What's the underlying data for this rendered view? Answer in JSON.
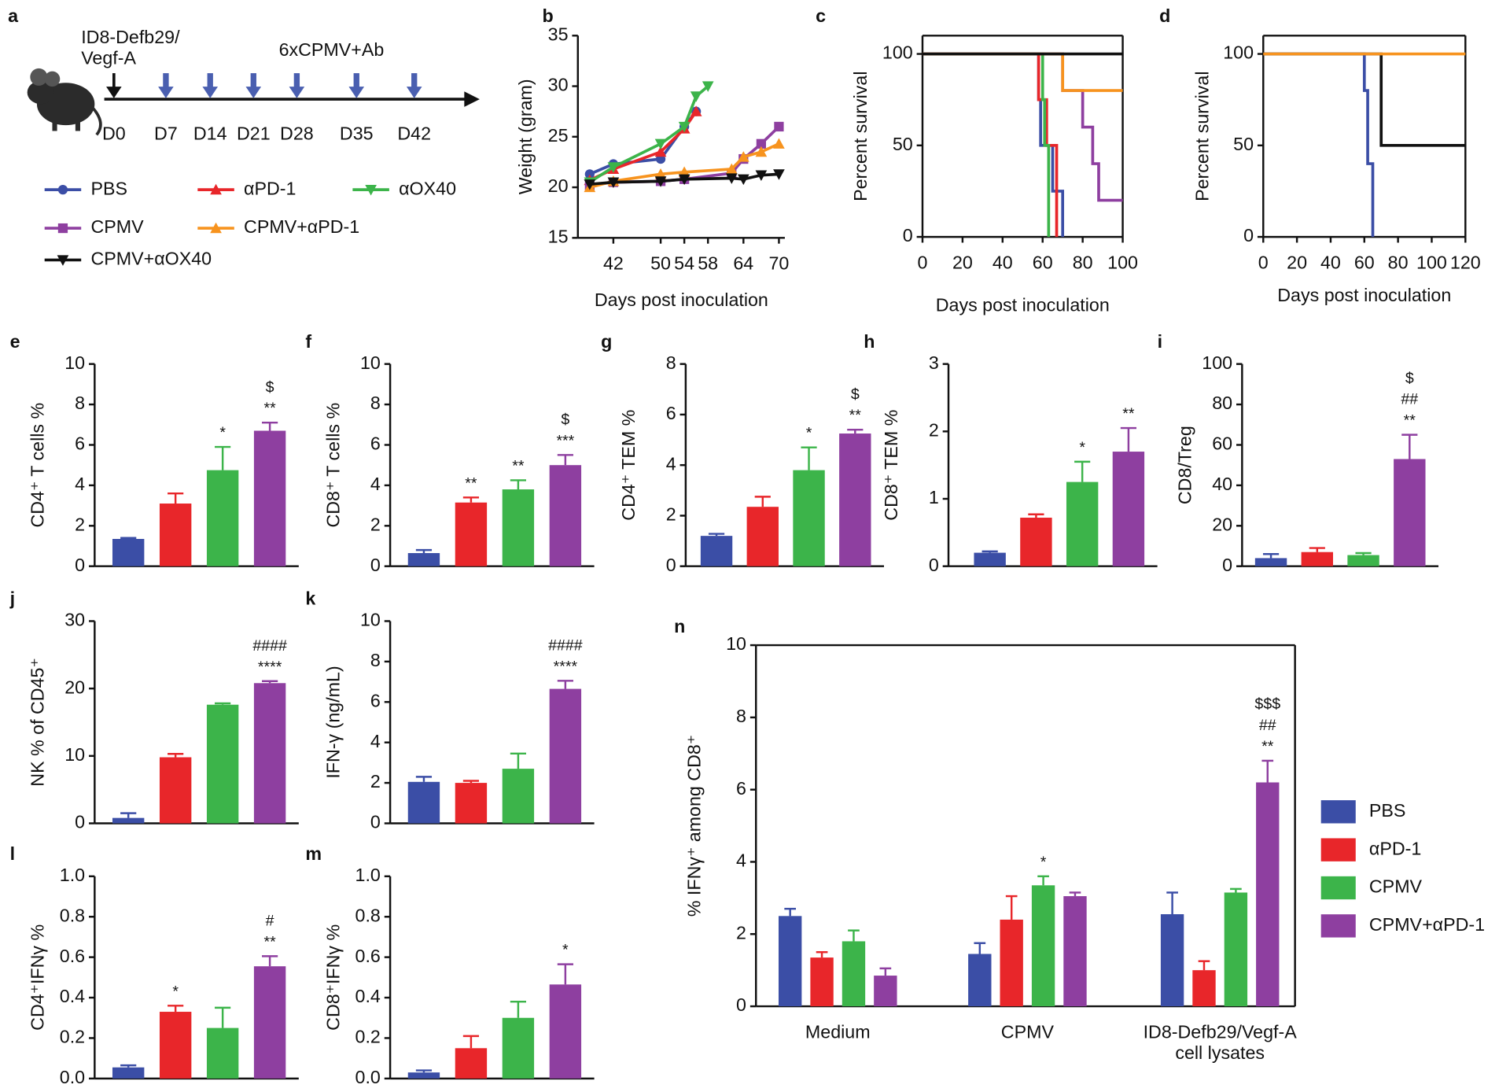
{
  "schematic": {
    "panel": "a",
    "start_label": "ID8-Defb29/\nVegf-A",
    "treatment_label": "6xCPMV+Ab",
    "days": [
      "D0",
      "D7",
      "D14",
      "D21",
      "D28",
      "D35",
      "D42"
    ],
    "legend": [
      {
        "name": "PBS",
        "color": "#3b4ea6",
        "marker": "circle"
      },
      {
        "name": "αPD-1",
        "color": "#e8262a",
        "marker": "triangle-up"
      },
      {
        "name": "αOX40",
        "color": "#3cb44a",
        "marker": "triangle-down"
      },
      {
        "name": "CPMV",
        "color": "#8e3fa0",
        "marker": "square"
      },
      {
        "name": "CPMV+αPD-1",
        "color": "#f7931e",
        "marker": "triangle-up"
      },
      {
        "name": "CPMV+αOX40",
        "color": "#111111",
        "marker": "triangle-down"
      }
    ]
  },
  "chart_data": [
    {
      "type": "line",
      "panel": "b",
      "ylabel": "Weight (gram)",
      "xlabel": "Days post inoculation",
      "xlim": [
        36,
        71
      ],
      "xticks": [
        42,
        50,
        54,
        58,
        64,
        70
      ],
      "ylim": [
        15,
        35
      ],
      "yticks": [
        15,
        20,
        25,
        30,
        35
      ],
      "series": [
        {
          "name": "PBS",
          "color": "#3b4ea6",
          "marker": "circle",
          "x": [
            38,
            42,
            50,
            54,
            56
          ],
          "values": [
            21.3,
            22.3,
            22.8,
            26,
            27.5
          ]
        },
        {
          "name": "αPD-1",
          "color": "#e8262a",
          "marker": "triangle-up",
          "x": [
            38,
            42,
            50,
            54,
            56
          ],
          "values": [
            20.7,
            21.8,
            23.5,
            25.8,
            27.5
          ]
        },
        {
          "name": "αOX40",
          "color": "#3cb44a",
          "marker": "triangle-down",
          "x": [
            38,
            42,
            50,
            54,
            56,
            58
          ],
          "values": [
            20.5,
            22,
            24.3,
            26,
            29,
            30
          ]
        },
        {
          "name": "CPMV",
          "color": "#8e3fa0",
          "marker": "square",
          "x": [
            38,
            42,
            50,
            54,
            62,
            64,
            67,
            70
          ],
          "values": [
            20.2,
            20.5,
            20.6,
            20.8,
            21.4,
            22.8,
            24.3,
            26
          ]
        },
        {
          "name": "CPMV+αPD-1",
          "color": "#f7931e",
          "marker": "triangle-up",
          "x": [
            38,
            42,
            50,
            54,
            62,
            64,
            67,
            70
          ],
          "values": [
            20,
            20.6,
            21.3,
            21.5,
            21.8,
            23,
            23.5,
            24.3
          ]
        },
        {
          "name": "CPMV+αOX40",
          "color": "#111111",
          "marker": "triangle-down",
          "x": [
            38,
            42,
            50,
            54,
            62,
            64,
            67,
            70
          ],
          "values": [
            20.3,
            20.5,
            20.6,
            20.8,
            20.9,
            20.8,
            21.2,
            21.3
          ]
        }
      ]
    },
    {
      "type": "line",
      "step": true,
      "panel": "c",
      "ylabel": "Percent survival",
      "xlabel": "Days post inoculation",
      "xlim": [
        0,
        100
      ],
      "xticks": [
        0,
        20,
        40,
        60,
        80,
        100
      ],
      "ylim": [
        0,
        110
      ],
      "yticks": [
        0,
        50,
        100
      ],
      "series": [
        {
          "name": "PBS",
          "color": "#3b4ea6",
          "x": [
            0,
            58,
            59,
            65,
            70
          ],
          "values": [
            100,
            75,
            50,
            25,
            0
          ]
        },
        {
          "name": "αPD-1",
          "color": "#e8262a",
          "x": [
            0,
            58,
            62,
            67
          ],
          "values": [
            100,
            75,
            50,
            0
          ]
        },
        {
          "name": "αOX40",
          "color": "#3cb44a",
          "x": [
            0,
            60,
            61,
            63
          ],
          "values": [
            100,
            75,
            50,
            0
          ]
        },
        {
          "name": "CPMV",
          "color": "#8e3fa0",
          "x": [
            0,
            70,
            80,
            85,
            88,
            100
          ],
          "values": [
            100,
            80,
            60,
            40,
            20,
            20
          ]
        },
        {
          "name": "CPMV+αPD-1",
          "color": "#f7931e",
          "x": [
            0,
            70,
            100
          ],
          "values": [
            100,
            80,
            80
          ]
        },
        {
          "name": "CPMV+αOX40",
          "color": "#111111",
          "x": [
            0,
            100
          ],
          "values": [
            100,
            100
          ]
        }
      ]
    },
    {
      "type": "line",
      "step": true,
      "panel": "d",
      "ylabel": "Percent survival",
      "xlabel": "Days post inoculation",
      "xlim": [
        0,
        120
      ],
      "xticks": [
        0,
        20,
        40,
        60,
        80,
        100,
        120
      ],
      "ylim": [
        0,
        110
      ],
      "yticks": [
        0,
        50,
        100
      ],
      "series": [
        {
          "name": "PBS",
          "color": "#3b4ea6",
          "x": [
            0,
            60,
            62,
            65
          ],
          "values": [
            100,
            80,
            40,
            0
          ]
        },
        {
          "name": "CPMV+αOX40",
          "color": "#111111",
          "x": [
            0,
            70,
            120
          ],
          "values": [
            100,
            50,
            50
          ]
        },
        {
          "name": "CPMV+αPD-1",
          "color": "#f7931e",
          "x": [
            0,
            120
          ],
          "values": [
            100,
            100
          ]
        }
      ]
    },
    {
      "type": "bar",
      "panel": "e",
      "ylabel": "CD4⁺ T cells %",
      "ylim": [
        0,
        10
      ],
      "yticks": [
        0,
        2,
        4,
        6,
        8,
        10
      ],
      "values": [
        1.35,
        3.1,
        4.75,
        6.7
      ],
      "errors": [
        0.05,
        0.5,
        1.15,
        0.4
      ],
      "colors": [
        "#3b4ea6",
        "#e8262a",
        "#3cb44a",
        "#8e3fa0"
      ],
      "annotations": [
        [],
        [],
        [
          "*"
        ],
        [
          "**",
          "$"
        ]
      ]
    },
    {
      "type": "bar",
      "panel": "f",
      "ylabel": "CD8⁺ T cells %",
      "ylim": [
        0,
        10
      ],
      "yticks": [
        0,
        2,
        4,
        6,
        8,
        10
      ],
      "values": [
        0.65,
        3.15,
        3.8,
        5.0
      ],
      "errors": [
        0.15,
        0.25,
        0.45,
        0.5
      ],
      "colors": [
        "#3b4ea6",
        "#e8262a",
        "#3cb44a",
        "#8e3fa0"
      ],
      "annotations": [
        [],
        [
          "**"
        ],
        [
          "**"
        ],
        [
          "***",
          "$"
        ]
      ]
    },
    {
      "type": "bar",
      "panel": "g",
      "ylabel": "CD4⁺ TEM %",
      "ylim": [
        0,
        8
      ],
      "yticks": [
        0,
        2,
        4,
        6,
        8
      ],
      "values": [
        1.2,
        2.35,
        3.8,
        5.25
      ],
      "errors": [
        0.08,
        0.4,
        0.9,
        0.15
      ],
      "colors": [
        "#3b4ea6",
        "#e8262a",
        "#3cb44a",
        "#8e3fa0"
      ],
      "annotations": [
        [],
        [],
        [
          "*"
        ],
        [
          "**",
          "$"
        ]
      ]
    },
    {
      "type": "bar",
      "panel": "h",
      "ylabel": "CD8⁺ TEM %",
      "ylim": [
        0,
        3
      ],
      "yticks": [
        0,
        1,
        2,
        3
      ],
      "values": [
        0.2,
        0.72,
        1.25,
        1.7
      ],
      "errors": [
        0.02,
        0.05,
        0.3,
        0.35
      ],
      "colors": [
        "#3b4ea6",
        "#e8262a",
        "#3cb44a",
        "#8e3fa0"
      ],
      "annotations": [
        [],
        [],
        [
          "*"
        ],
        [
          "**"
        ]
      ]
    },
    {
      "type": "bar",
      "panel": "i",
      "ylabel": "CD8/Treg",
      "ylim": [
        0,
        100
      ],
      "yticks": [
        0,
        20,
        40,
        60,
        80,
        100
      ],
      "values": [
        4,
        7,
        5.5,
        53
      ],
      "errors": [
        2,
        2,
        1,
        12
      ],
      "colors": [
        "#3b4ea6",
        "#e8262a",
        "#3cb44a",
        "#8e3fa0"
      ],
      "annotations": [
        [],
        [],
        [],
        [
          "**",
          "##",
          "$"
        ]
      ]
    },
    {
      "type": "bar",
      "panel": "j",
      "ylabel": "NK % of CD45⁺",
      "ylim": [
        0,
        30
      ],
      "yticks": [
        0,
        10,
        20,
        30
      ],
      "values": [
        0.8,
        9.8,
        17.6,
        20.8
      ],
      "errors": [
        0.7,
        0.5,
        0.2,
        0.3
      ],
      "colors": [
        "#3b4ea6",
        "#e8262a",
        "#3cb44a",
        "#8e3fa0"
      ],
      "annotations": [
        [],
        [],
        [],
        [
          "****",
          "####"
        ]
      ]
    },
    {
      "type": "bar",
      "panel": "k",
      "ylabel": "IFN-γ (ng/mL)",
      "ylim": [
        0,
        10
      ],
      "yticks": [
        0,
        2,
        4,
        6,
        8,
        10
      ],
      "values": [
        2.05,
        2.0,
        2.7,
        6.65
      ],
      "errors": [
        0.25,
        0.1,
        0.75,
        0.4
      ],
      "colors": [
        "#3b4ea6",
        "#e8262a",
        "#3cb44a",
        "#8e3fa0"
      ],
      "annotations": [
        [],
        [],
        [],
        [
          "****",
          "####"
        ]
      ]
    },
    {
      "type": "bar",
      "panel": "l",
      "ylabel": "CD4⁺IFNγ %",
      "ylim": [
        0,
        1
      ],
      "yticks": [
        {
          "value": 0,
          "label": "0.0"
        },
        0.2,
        0.4,
        0.6,
        0.8,
        {
          "value": 1,
          "label": "1.0"
        }
      ],
      "values": [
        0.055,
        0.33,
        0.25,
        0.555
      ],
      "errors": [
        0.01,
        0.03,
        0.1,
        0.05
      ],
      "colors": [
        "#3b4ea6",
        "#e8262a",
        "#3cb44a",
        "#8e3fa0"
      ],
      "annotations": [
        [],
        [
          "*"
        ],
        [],
        [
          "**",
          "#"
        ]
      ]
    },
    {
      "type": "bar",
      "panel": "m",
      "ylabel": "CD8⁺IFNγ %",
      "ylim": [
        0,
        1
      ],
      "yticks": [
        {
          "value": 0,
          "label": "0.0"
        },
        0.2,
        0.4,
        0.6,
        0.8,
        {
          "value": 1,
          "label": "1.0"
        }
      ],
      "values": [
        0.03,
        0.15,
        0.3,
        0.465
      ],
      "errors": [
        0.01,
        0.06,
        0.08,
        0.1
      ],
      "colors": [
        "#3b4ea6",
        "#e8262a",
        "#3cb44a",
        "#8e3fa0"
      ],
      "annotations": [
        [],
        [],
        [],
        [
          "*"
        ]
      ]
    },
    {
      "type": "grouped_bar",
      "panel": "n",
      "ylabel": "% IFNγ⁺ among CD8⁺",
      "ylim": [
        0,
        10
      ],
      "yticks": [
        0,
        2,
        4,
        6,
        8,
        10
      ],
      "categories": [
        "Medium",
        "CPMV",
        "ID8-Defb29/Vegf-A\ncell lysates"
      ],
      "series": [
        {
          "name": "PBS",
          "color": "#3b4ea6",
          "values": [
            2.5,
            1.45,
            2.55
          ],
          "errors": [
            0.2,
            0.3,
            0.6
          ],
          "annotations": [
            [],
            [],
            []
          ]
        },
        {
          "name": "αPD-1",
          "color": "#e8262a",
          "values": [
            1.35,
            2.4,
            1.0
          ],
          "errors": [
            0.15,
            0.65,
            0.25
          ],
          "annotations": [
            [],
            [],
            []
          ]
        },
        {
          "name": "CPMV",
          "color": "#3cb44a",
          "values": [
            1.8,
            3.35,
            3.15
          ],
          "errors": [
            0.3,
            0.25,
            0.1
          ],
          "annotations": [
            [],
            [
              "*"
            ],
            []
          ]
        },
        {
          "name": "CPMV+αPD-1",
          "color": "#8e3fa0",
          "values": [
            0.85,
            3.05,
            6.2
          ],
          "errors": [
            0.2,
            0.1,
            0.6
          ],
          "annotations": [
            [],
            [],
            [
              "**",
              "##",
              "$$$"
            ]
          ]
        }
      ]
    }
  ]
}
